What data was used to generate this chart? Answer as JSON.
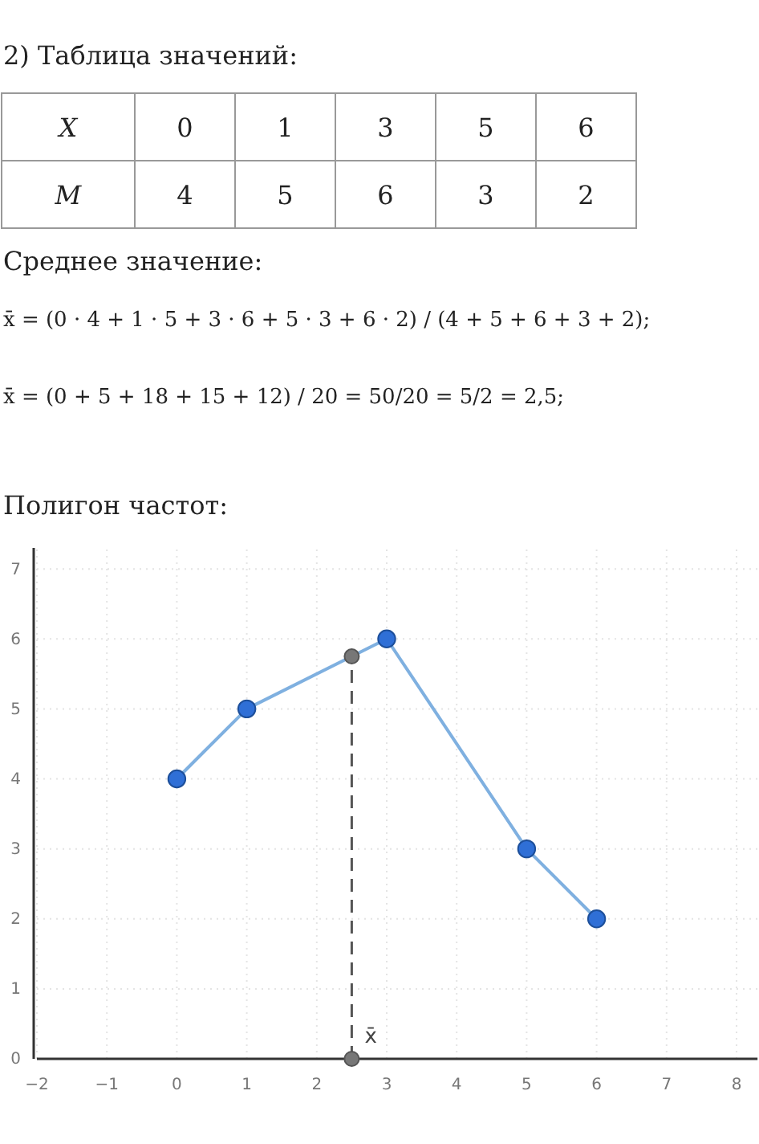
{
  "chart_data": [
    {
      "type": "other",
      "title": "2) Таблица значений:",
      "annotations": [
        "X",
        "0",
        "1",
        "3",
        "5",
        "6",
        "M",
        "4",
        "5",
        "6",
        "3",
        "2"
      ]
    },
    {
      "type": "other",
      "title": "Среднее значение:",
      "annotations": [
        "x̄ = (0 · 4 + 1 · 5 + 3 · 6 + 5 · 3 + 6 · 2) / (4 + 5 + 6 + 3 + 2);",
        "x̄ = (0 + 5 + 18 + 15 + 12) / 20 = 50/20 = 5/2 = 2,5;"
      ]
    },
    {
      "type": "line",
      "title": "Полигон частот:",
      "x": [
        0,
        1,
        3,
        5,
        6
      ],
      "series": [
        {
          "color": "#2f6fd6",
          "values": [
            4,
            5,
            6,
            3,
            2
          ]
        }
      ],
      "marker": "circle",
      "line_style": "solid",
      "grid": true,
      "xlim": [
        -2,
        8.3
      ],
      "ylim": [
        0,
        7.3
      ],
      "xticks": [
        {
          "value": -2,
          "label": "−2"
        },
        {
          "value": -1,
          "label": "−1"
        },
        0,
        1,
        2,
        3,
        4,
        5,
        6,
        7,
        8
      ],
      "yticks": [
        0,
        1,
        2,
        3,
        4,
        5,
        6,
        7
      ],
      "ref_lines": [
        {
          "axis": "x",
          "value": 2.5,
          "label": "x̄",
          "color": "#555555",
          "line_style": "dashed"
        }
      ]
    }
  ]
}
